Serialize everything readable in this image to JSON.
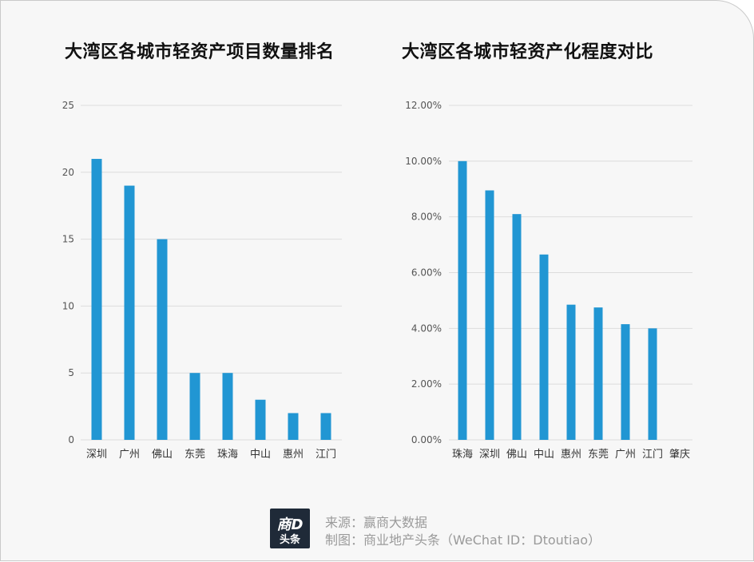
{
  "footer": {
    "logo_top": "商D",
    "logo_bottom": "头条",
    "source": "来源：赢商大数据",
    "credit": "制图：商业地产头条（WeChat ID：Dtoutiao）"
  },
  "chart_data": [
    {
      "type": "bar",
      "title": "大湾区各城市轻资产项目数量排名",
      "categories": [
        "深圳",
        "广州",
        "佛山",
        "东莞",
        "珠海",
        "中山",
        "惠州",
        "江门"
      ],
      "values": [
        21,
        19,
        15,
        5,
        5,
        3,
        2,
        2
      ],
      "ylim": [
        0,
        25
      ],
      "yticks": [
        "0",
        "5",
        "10",
        "15",
        "20",
        "25"
      ],
      "grid": true,
      "color": "#2196d3"
    },
    {
      "type": "bar",
      "title": "大湾区各城市轻资产化程度对比",
      "categories": [
        "珠海",
        "深圳",
        "佛山",
        "中山",
        "惠州",
        "东莞",
        "广州",
        "江门",
        "肇庆"
      ],
      "values": [
        10.0,
        8.95,
        8.1,
        6.65,
        4.85,
        4.75,
        4.15,
        4.0,
        0
      ],
      "ylim": [
        0,
        12
      ],
      "yticks": [
        "0.00%",
        "2.00%",
        "4.00%",
        "6.00%",
        "8.00%",
        "10.00%",
        "12.00%"
      ],
      "grid": true,
      "color": "#2196d3"
    }
  ]
}
